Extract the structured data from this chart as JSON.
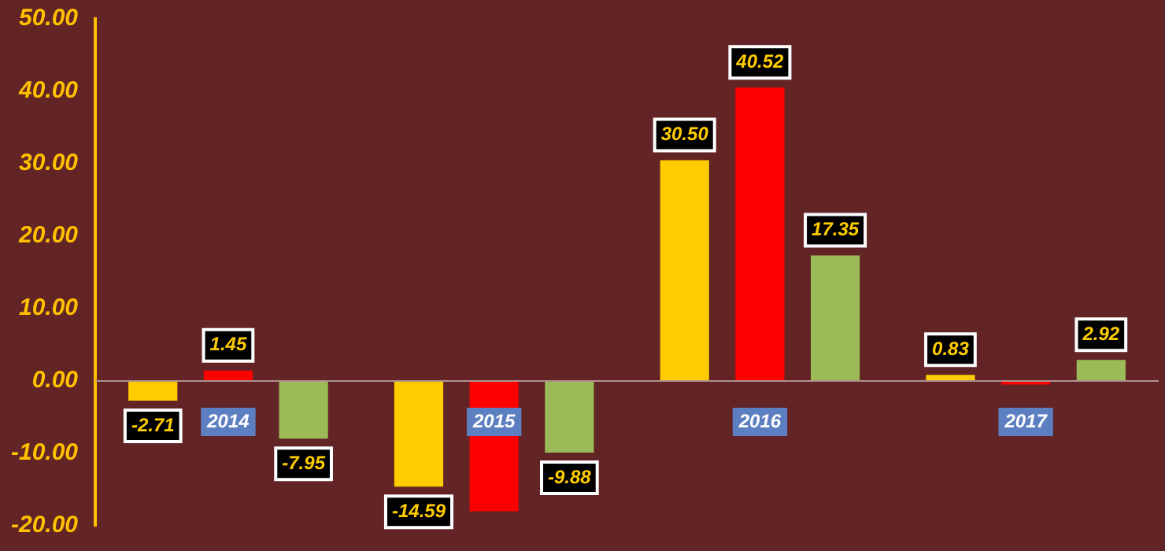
{
  "chart_data": {
    "type": "bar",
    "categories": [
      "2014",
      "2015",
      "2016",
      "2017"
    ],
    "series": [
      {
        "color": "#ffcc00",
        "values": [
          -2.71,
          -14.59,
          30.5,
          0.83
        ],
        "value_labels": [
          "-2.71",
          "-14.59",
          "30.50",
          "0.83"
        ]
      },
      {
        "color": "#ff0000",
        "values": [
          1.45,
          -18.0,
          40.52,
          -0.5
        ],
        "value_labels": [
          "1.45",
          null,
          "40.52",
          null
        ]
      },
      {
        "color": "#9bbb59",
        "values": [
          -7.95,
          -9.88,
          17.35,
          2.92
        ],
        "value_labels": [
          "-7.95",
          "-9.88",
          "17.35",
          "2.92"
        ]
      }
    ],
    "ylim": [
      -20,
      50
    ],
    "yticks": [
      {
        "value": -20,
        "label": "-20.00"
      },
      {
        "value": -10,
        "label": "-10.00"
      },
      {
        "value": 0,
        "label": "0.00"
      },
      {
        "value": 10,
        "label": "10.00"
      },
      {
        "value": 20,
        "label": "20.00"
      },
      {
        "value": 30,
        "label": "30.00"
      },
      {
        "value": 40,
        "label": "40.00"
      },
      {
        "value": 50,
        "label": "50.00"
      }
    ],
    "grid": false,
    "legend": false
  }
}
